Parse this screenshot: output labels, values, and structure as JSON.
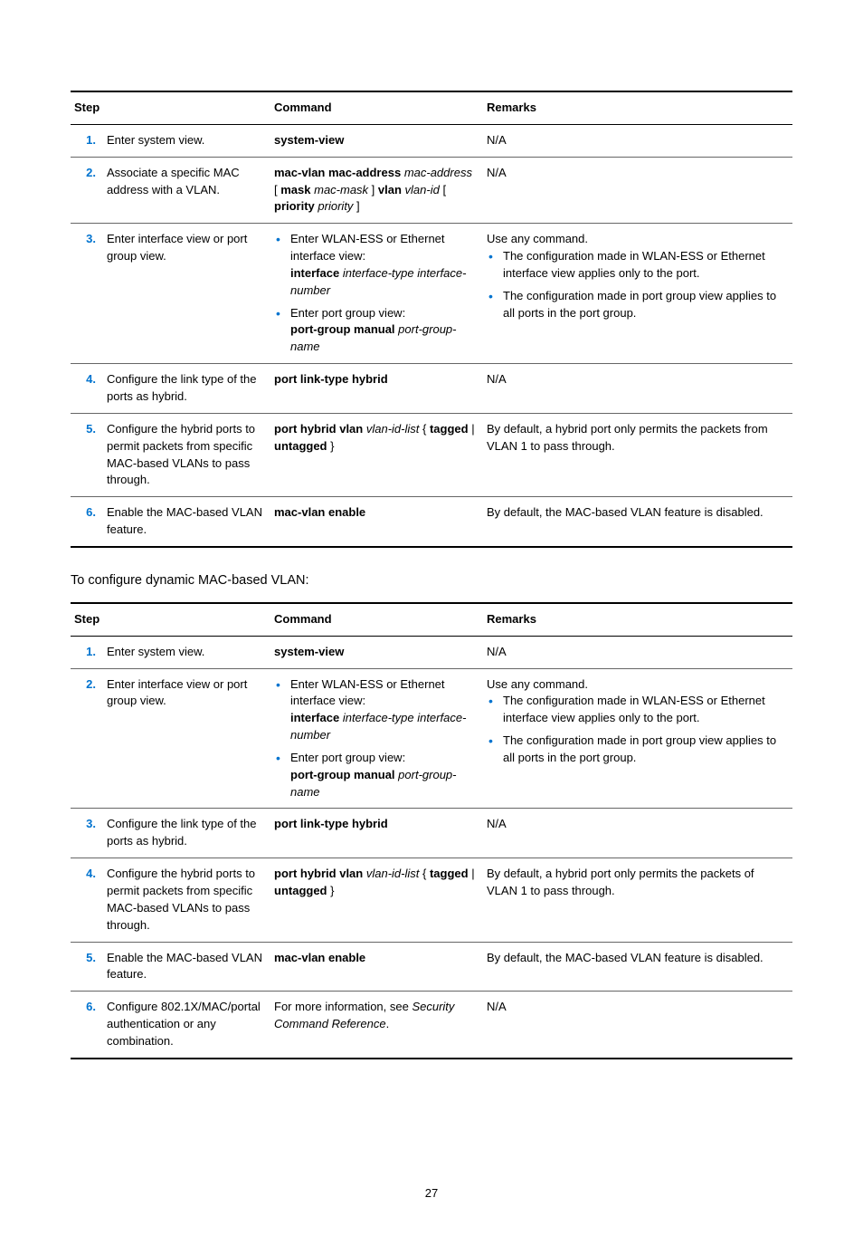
{
  "colors": {
    "accent": "#0073cf",
    "text": "#000000",
    "rule_heavy": "#000000",
    "rule_light": "#666666",
    "background": "#ffffff"
  },
  "page_number": "27",
  "table1": {
    "headers": {
      "step": "Step",
      "command": "Command",
      "remarks": "Remarks"
    },
    "rows": [
      {
        "num": "1.",
        "step": "Enter system view.",
        "cmd_segments": [
          {
            "t": "system-view",
            "b": true
          }
        ],
        "remarks_plain": "N/A"
      },
      {
        "num": "2.",
        "step": "Associate a specific MAC address with a VLAN.",
        "cmd_segments": [
          {
            "t": "mac-vlan mac-address",
            "b": true
          },
          {
            "t": " "
          },
          {
            "t": "mac-address",
            "i": true
          },
          {
            "t": " [ "
          },
          {
            "t": "mask",
            "b": true
          },
          {
            "t": " "
          },
          {
            "t": "mac-mask",
            "i": true
          },
          {
            "t": " ] "
          },
          {
            "t": "vlan",
            "b": true
          },
          {
            "t": " "
          },
          {
            "t": "vlan-id",
            "i": true
          },
          {
            "t": " [ "
          },
          {
            "t": "priority",
            "b": true
          },
          {
            "t": " "
          },
          {
            "t": "priority",
            "i": true
          },
          {
            "t": " ]"
          }
        ],
        "remarks_plain": "N/A"
      },
      {
        "num": "3.",
        "step": "Enter interface view or port group view.",
        "cmd_bullets": [
          [
            {
              "t": "Enter WLAN-ESS or Ethernet interface view:"
            },
            {
              "t": "\n"
            },
            {
              "t": "interface",
              "b": true
            },
            {
              "t": " "
            },
            {
              "t": "interface-type interface-number",
              "i": true
            }
          ],
          [
            {
              "t": "Enter port group view:"
            },
            {
              "t": "\n"
            },
            {
              "t": "port-group manual",
              "b": true
            },
            {
              "t": " "
            },
            {
              "t": "port-group-name",
              "i": true
            }
          ]
        ],
        "remarks_intro": "Use any command.",
        "remarks_bullets": [
          "The configuration made in WLAN-ESS or Ethernet interface view applies only to the port.",
          "The configuration made in port group view applies to all ports in the port group."
        ]
      },
      {
        "num": "4.",
        "step": "Configure the link type of the ports as hybrid.",
        "cmd_segments": [
          {
            "t": "port link-type hybrid",
            "b": true
          }
        ],
        "remarks_plain": "N/A"
      },
      {
        "num": "5.",
        "step": "Configure the hybrid ports to permit packets from specific MAC-based VLANs to pass through.",
        "cmd_segments": [
          {
            "t": "port hybrid vlan",
            "b": true
          },
          {
            "t": " "
          },
          {
            "t": "vlan-id-list",
            "i": true
          },
          {
            "t": " { "
          },
          {
            "t": "tagged",
            "b": true
          },
          {
            "t": " | "
          },
          {
            "t": "untagged",
            "b": true
          },
          {
            "t": " }"
          }
        ],
        "remarks_plain": "By default, a hybrid port only permits the packets from VLAN 1 to pass through."
      },
      {
        "num": "6.",
        "step": "Enable the MAC-based VLAN feature.",
        "cmd_segments": [
          {
            "t": "mac-vlan enable",
            "b": true
          }
        ],
        "remarks_plain": "By default, the MAC-based VLAN feature is disabled."
      }
    ]
  },
  "intertext": "To configure dynamic MAC-based VLAN:",
  "table2": {
    "headers": {
      "step": "Step",
      "command": "Command",
      "remarks": "Remarks"
    },
    "rows": [
      {
        "num": "1.",
        "step": "Enter system view.",
        "cmd_segments": [
          {
            "t": "system-view",
            "b": true
          }
        ],
        "remarks_plain": "N/A"
      },
      {
        "num": "2.",
        "step": "Enter interface view or port group view.",
        "cmd_bullets": [
          [
            {
              "t": "Enter WLAN-ESS or Ethernet interface view:"
            },
            {
              "t": "\n"
            },
            {
              "t": "interface",
              "b": true
            },
            {
              "t": " "
            },
            {
              "t": "interface-type interface-number",
              "i": true
            }
          ],
          [
            {
              "t": "Enter port group view:"
            },
            {
              "t": "\n"
            },
            {
              "t": "port-group manual",
              "b": true
            },
            {
              "t": " "
            },
            {
              "t": "port-group-name",
              "i": true
            }
          ]
        ],
        "remarks_intro": "Use any command.",
        "remarks_bullets": [
          "The configuration made in WLAN-ESS or Ethernet interface view applies only to the port.",
          "The configuration made in port group view applies to all ports in the port group."
        ]
      },
      {
        "num": "3.",
        "step": "Configure the link type of the ports as hybrid.",
        "cmd_segments": [
          {
            "t": "port link-type hybrid",
            "b": true
          }
        ],
        "remarks_plain": "N/A"
      },
      {
        "num": "4.",
        "step": "Configure the hybrid ports to permit packets from specific MAC-based VLANs to pass through.",
        "cmd_segments": [
          {
            "t": "port hybrid vlan",
            "b": true
          },
          {
            "t": " "
          },
          {
            "t": "vlan-id-list",
            "i": true
          },
          {
            "t": " { "
          },
          {
            "t": "tagged",
            "b": true
          },
          {
            "t": " | "
          },
          {
            "t": "untagged",
            "b": true
          },
          {
            "t": " }"
          }
        ],
        "remarks_plain": "By default, a hybrid port only permits the packets of VLAN 1 to pass through."
      },
      {
        "num": "5.",
        "step": "Enable the MAC-based VLAN feature.",
        "cmd_segments": [
          {
            "t": "mac-vlan enable",
            "b": true
          }
        ],
        "remarks_plain": "By default, the MAC-based VLAN feature is disabled."
      },
      {
        "num": "6.",
        "step": "Configure 802.1X/MAC/portal authentication or any combination.",
        "cmd_segments": [
          {
            "t": "For more information, see "
          },
          {
            "t": "Security Command Reference",
            "i": true
          },
          {
            "t": "."
          }
        ],
        "remarks_plain": "N/A"
      }
    ]
  }
}
